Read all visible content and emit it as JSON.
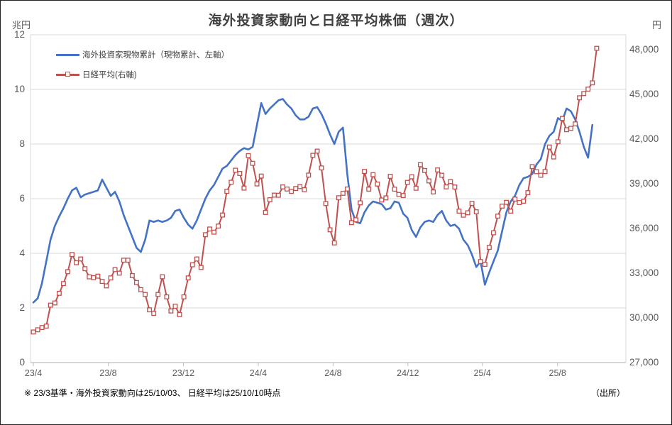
{
  "window": {
    "title": "海外投資家動向と日経平均株価（週次）"
  },
  "footnote": "※ 23/3基準・海外投資家動向は25/10/03、 日経平均は25/10/10時点",
  "source_label": "（出所）",
  "colors": {
    "foreign_line": "#4472C4",
    "nikkei_line": "#C0504D",
    "marker_fill": "#FFFFFF",
    "gridline": "#D9D9D9",
    "axis_line": "#BFBFBF",
    "axis_text": "#595959",
    "title_text": "#3F3F3F"
  },
  "chart_data": {
    "type": "line",
    "title": "海外投資家動向と日経平均株価（週次）",
    "grid": "horizontal-only",
    "legend_position": "top-left-inside",
    "left_axis": {
      "unit_label": "兆円",
      "min": 0,
      "max": 12,
      "major_unit": 2,
      "tick_labels": [
        "0",
        "2",
        "4",
        "6",
        "8",
        "10",
        "12"
      ],
      "tick_values": [
        0,
        2,
        4,
        6,
        8,
        10,
        12
      ]
    },
    "right_axis": {
      "unit_label": "円",
      "min": 27000,
      "max": 49000,
      "major_unit": 3000,
      "tick_labels": [
        "27,000",
        "30,000",
        "33,000",
        "36,000",
        "39,000",
        "42,000",
        "45,000",
        "48,000"
      ],
      "tick_values": [
        27000,
        30000,
        33000,
        36000,
        39000,
        42000,
        45000,
        48000
      ]
    },
    "x_axis": {
      "tick_labels": [
        "23/4",
        "23/8",
        "23/12",
        "24/4",
        "24/8",
        "24/12",
        "25/4",
        "25/8"
      ],
      "tick_week_indices": [
        0,
        17.4,
        34.9,
        52.3,
        69.7,
        87.1,
        104.4,
        121.9
      ],
      "total_weeks": 132
    },
    "series": [
      {
        "name": "海外投資家現物累計（現物累計、左軸）",
        "axis": "left",
        "color": "#4472C4",
        "marker": "none",
        "values": [
          2.2,
          2.35,
          2.9,
          3.7,
          4.5,
          5.0,
          5.35,
          5.65,
          6.0,
          6.3,
          6.4,
          6.05,
          6.15,
          6.2,
          6.25,
          6.3,
          6.7,
          6.4,
          6.1,
          6.25,
          5.9,
          5.4,
          5.0,
          4.6,
          4.2,
          4.05,
          4.5,
          5.2,
          5.15,
          5.2,
          5.15,
          5.2,
          5.3,
          5.55,
          5.6,
          5.3,
          5.05,
          4.9,
          5.2,
          5.6,
          6.0,
          6.3,
          6.5,
          6.8,
          7.1,
          7.2,
          7.4,
          7.6,
          7.75,
          7.85,
          7.8,
          7.9,
          8.7,
          9.5,
          9.1,
          9.3,
          9.45,
          9.6,
          9.65,
          9.45,
          9.3,
          9.05,
          8.9,
          8.9,
          9.0,
          9.3,
          9.35,
          9.1,
          8.75,
          8.35,
          8.0,
          8.45,
          8.6,
          6.9,
          5.6,
          5.15,
          5.1,
          5.5,
          5.75,
          5.9,
          5.85,
          5.8,
          5.6,
          5.65,
          5.9,
          5.85,
          5.45,
          5.3,
          4.85,
          4.6,
          4.95,
          5.15,
          5.2,
          5.15,
          5.4,
          5.55,
          5.2,
          5.0,
          5.05,
          4.9,
          4.5,
          4.3,
          3.95,
          3.5,
          3.7,
          2.85,
          3.3,
          3.7,
          4.1,
          4.8,
          5.5,
          5.9,
          6.1,
          6.5,
          6.75,
          6.8,
          6.9,
          7.25,
          7.45,
          8.0,
          8.3,
          8.45,
          8.95,
          8.85,
          9.3,
          9.2,
          8.9,
          8.45,
          7.9,
          7.5,
          8.7
        ]
      },
      {
        "name": "日経平均(右軸)",
        "axis": "right",
        "color": "#C0504D",
        "marker": "square",
        "values": [
          29050,
          29200,
          29350,
          29450,
          30850,
          31000,
          31650,
          32300,
          33100,
          34250,
          33700,
          33950,
          33300,
          32750,
          32700,
          32800,
          32450,
          32150,
          32680,
          33240,
          33000,
          33870,
          33870,
          32840,
          32370,
          31890,
          31570,
          30540,
          30300,
          31570,
          32760,
          31410,
          30460,
          30780,
          30220,
          31410,
          32680,
          33560,
          33950,
          33380,
          35580,
          35960,
          35750,
          36160,
          36900,
          38490,
          39100,
          39910,
          39690,
          38710,
          40890,
          40370,
          38990,
          39520,
          37070,
          37930,
          38240,
          38230,
          38790,
          38650,
          38490,
          38680,
          38810,
          38600,
          39580,
          40910,
          41190,
          40060,
          37670,
          35910,
          35030,
          38060,
          38360,
          38650,
          36390,
          36580,
          37720,
          39830,
          38640,
          39610,
          38980,
          37910,
          38050,
          39500,
          38640,
          38280,
          38210,
          39090,
          39470,
          38700,
          40280,
          39890,
          39190,
          38450,
          39930,
          39570,
          38790,
          39150,
          38780,
          37160,
          36890,
          37050,
          37680,
          37120,
          33780,
          33590,
          34730,
          35710,
          36830,
          37500,
          37750,
          37160,
          37970,
          37740,
          37830,
          38400,
          40150,
          39810,
          39570,
          39820,
          41460,
          40800,
          41820,
          43380,
          42630,
          42720,
          43020,
          44770,
          45050,
          45350,
          45770,
          48090
        ]
      }
    ]
  }
}
